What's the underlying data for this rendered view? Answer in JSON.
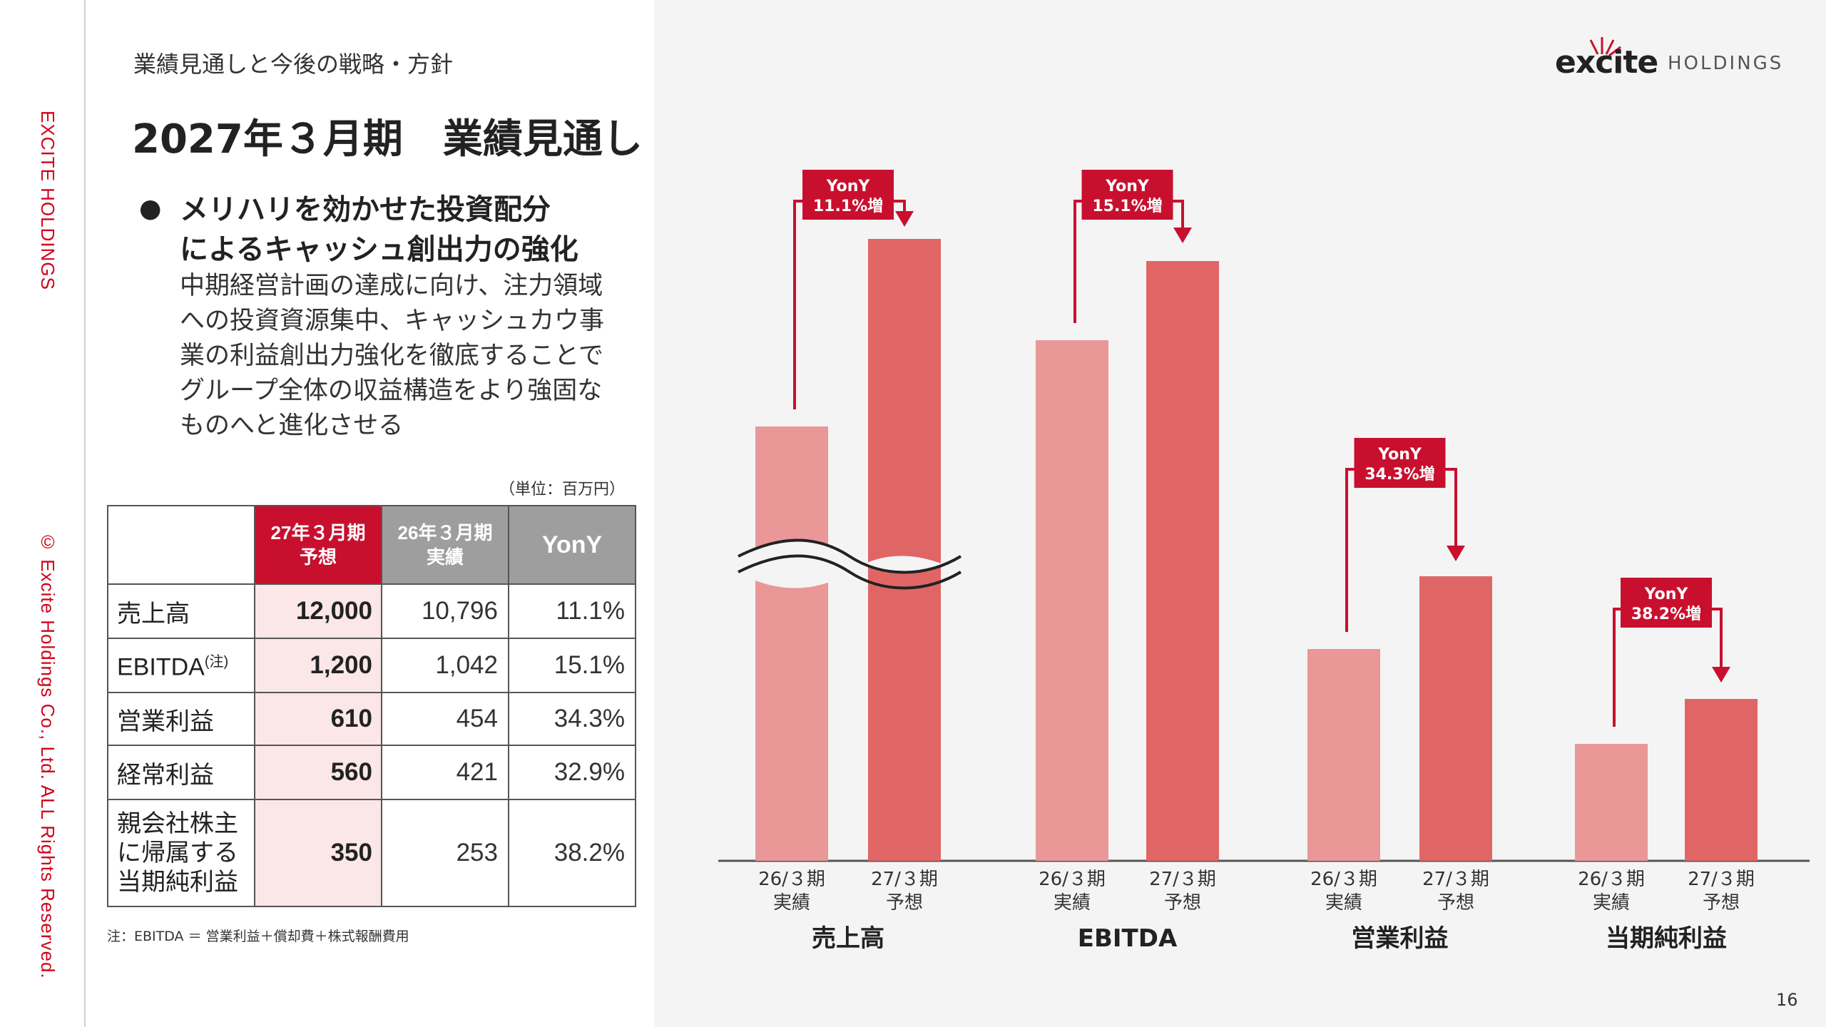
{
  "side": {
    "brand": "EXCITE HOLDINGS",
    "copyright": "© Excite Holdings Co., Ltd. ALL Rights Reserved."
  },
  "breadcrumb": "業績見通しと今後の戦略・方針",
  "title": "2027年３月期　業績見通し",
  "bullet": {
    "marker": "●",
    "heading_lines": [
      "メリハリを効かせた投資配分",
      "によるキャッシュ創出力の強化"
    ],
    "body_lines": [
      "中期経営計画の達成に向け、注力領域",
      "への投資資源集中、キャッシュカウ事",
      "業の利益創出力強化を徹底することで",
      "グループ全体の収益構造をより強固な",
      "ものへと進化させる"
    ]
  },
  "table": {
    "unit": "（単位：百万円）",
    "headers": {
      "est_line1": "27年３月期",
      "est_line2": "予想",
      "act_line1": "26年３月期",
      "act_line2": "実績",
      "yoy": "YonY"
    },
    "rows": [
      {
        "label": "売上高",
        "est": "12,000",
        "act": "10,796",
        "yoy": "11.1%"
      },
      {
        "label": "EBITDA",
        "note": "(注)",
        "est": "1,200",
        "act": "1,042",
        "yoy": "15.1%"
      },
      {
        "label": "営業利益",
        "est": "610",
        "act": "454",
        "yoy": "34.3%"
      },
      {
        "label": "経常利益",
        "est": "560",
        "act": "421",
        "yoy": "32.9%"
      },
      {
        "label_lines": [
          "親会社株主",
          "に帰属する",
          "当期純利益"
        ],
        "est": "350",
        "act": "253",
        "yoy": "38.2%"
      }
    ],
    "footnote": "注：EBITDA ＝ 営業利益＋償却費＋株式報酬費用"
  },
  "logo": {
    "mark": "excite",
    "text": "HOLDINGS"
  },
  "page_number": "16",
  "colors": {
    "accent_red": "#c8102e",
    "bar_actual": "#e99797",
    "bar_forecast": "#e06666",
    "est_cell_bg": "#fbe6e8",
    "header_gray": "#9e9e9e",
    "panel_bg": "#f4f4f4"
  },
  "chart_data": {
    "type": "bar",
    "note": "Grouped bars; 売上高 axis is broken (wavy break mark). Bar heights are relative per group.",
    "groups": [
      {
        "name": "売上高",
        "values": [
          10796,
          12000
        ],
        "yoy": "YonY\n11.1%増",
        "axis_break": true
      },
      {
        "name": "EBITDA",
        "values": [
          1042,
          1200
        ],
        "yoy": "YonY\n15.1%増"
      },
      {
        "name": "営業利益",
        "values": [
          454,
          610
        ],
        "yoy": "YonY\n34.3%増"
      },
      {
        "name": "当期純利益",
        "values": [
          253,
          350
        ],
        "yoy": "YonY\n38.2%増"
      }
    ],
    "bar_labels": [
      {
        "line1": "26/３期",
        "line2": "実績"
      },
      {
        "line1": "27/３期",
        "line2": "予想"
      }
    ],
    "yoy_labels": [
      {
        "l1": "YonY",
        "l2": "11.1%増"
      },
      {
        "l1": "YonY",
        "l2": "15.1%増"
      },
      {
        "l1": "YonY",
        "l2": "34.3%増"
      },
      {
        "l1": "YonY",
        "l2": "38.2%増"
      }
    ],
    "categories": [
      "売上高",
      "EBITDA",
      "営業利益",
      "当期純利益"
    ]
  }
}
